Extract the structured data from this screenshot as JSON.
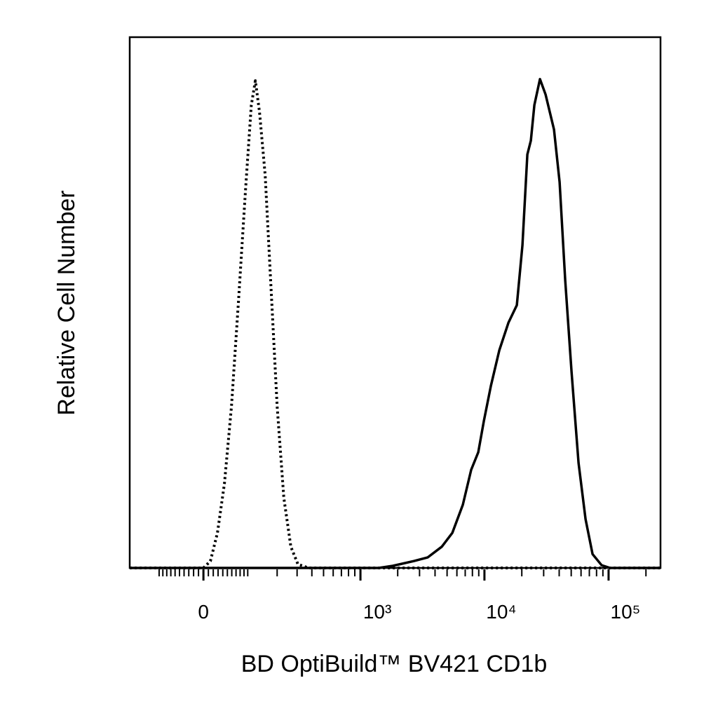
{
  "chart_data": {
    "type": "line",
    "xlabel": "BD OptiBuild™ BV421 CD1b",
    "ylabel": "Relative Cell Number",
    "xscale": "biexponential",
    "xlim": [
      -200,
      262000
    ],
    "ylim": [
      0,
      100
    ],
    "xticks": [
      {
        "value": 0,
        "label": "0"
      },
      {
        "value": 1000,
        "label": "10³"
      },
      {
        "value": 10000,
        "label": "10⁴"
      },
      {
        "value": 100000,
        "label": "10⁵"
      }
    ],
    "xminorticks": [
      -100,
      -90,
      -80,
      -70,
      -60,
      -50,
      -40,
      -30,
      -20,
      -10,
      10,
      20,
      30,
      40,
      50,
      60,
      70,
      80,
      90,
      100,
      200,
      300,
      400,
      500,
      600,
      700,
      800,
      900,
      2000,
      3000,
      4000,
      5000,
      6000,
      7000,
      8000,
      9000,
      20000,
      30000,
      40000,
      50000,
      60000,
      70000,
      80000,
      90000,
      200000
    ],
    "grid": false,
    "series": [
      {
        "color": "#000000",
        "dash": "dotted",
        "x": [
          -200,
          0,
          14.2,
          28.7,
          43.6,
          59.3,
          76,
          94,
          110,
          122,
          135,
          154,
          174,
          200,
          230,
          265,
          305,
          375,
          262000
        ],
        "values": [
          0,
          0,
          1.3,
          6.6,
          15.9,
          30.4,
          50.2,
          71.3,
          87.2,
          91.8,
          85.9,
          74,
          54.1,
          30.4,
          13.2,
          4,
          0.7,
          0,
          0
        ]
      },
      {
        "color": "#000000",
        "dash": "solid",
        "x": [
          -200,
          1404,
          1824,
          2695,
          3494,
          4534,
          5510,
          6696,
          7826,
          8920,
          9900,
          11270,
          13180,
          15610,
          18240,
          20240,
          22170,
          23660,
          25250,
          28010,
          31090,
          36330,
          40320,
          44740,
          50300,
          57280,
          65240,
          74280,
          87960,
          102800,
          262000
        ],
        "values": [
          0,
          0,
          0.4,
          1.3,
          2,
          4,
          6.6,
          11.9,
          18.5,
          21.8,
          27.7,
          34.3,
          41,
          46.2,
          49.5,
          60.8,
          77.9,
          80.5,
          87.2,
          92.1,
          89.2,
          82.6,
          72.7,
          54.2,
          37,
          19.8,
          9.2,
          2.6,
          0.5,
          0,
          0
        ]
      }
    ]
  }
}
